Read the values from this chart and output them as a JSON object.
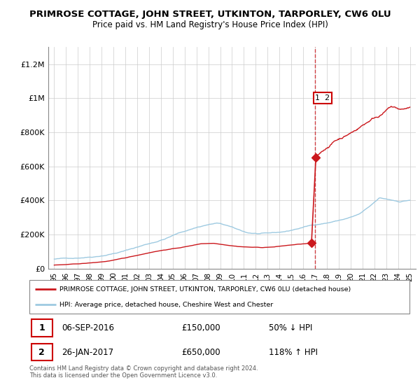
{
  "title": "PRIMROSE COTTAGE, JOHN STREET, UTKINTON, TARPORLEY, CW6 0LU",
  "subtitle": "Price paid vs. HM Land Registry's House Price Index (HPI)",
  "title_fontsize": 9.5,
  "subtitle_fontsize": 8.5,
  "ylim": [
    0,
    1300000
  ],
  "xlim": [
    1994.5,
    2025.5
  ],
  "yticks": [
    0,
    200000,
    400000,
    600000,
    800000,
    1000000,
    1200000
  ],
  "ytick_labels": [
    "£0",
    "£200K",
    "£400K",
    "£600K",
    "£800K",
    "£1M",
    "£1.2M"
  ],
  "xticks": [
    1995,
    1996,
    1997,
    1998,
    1999,
    2000,
    2001,
    2002,
    2003,
    2004,
    2005,
    2006,
    2007,
    2008,
    2009,
    2010,
    2011,
    2012,
    2013,
    2014,
    2015,
    2016,
    2017,
    2018,
    2019,
    2020,
    2021,
    2022,
    2023,
    2024,
    2025
  ],
  "hpi_color": "#9ecae1",
  "price_color": "#cb181d",
  "sale1_x": 2016.7,
  "sale1_y": 150000,
  "sale2_x": 2017.07,
  "sale2_y": 650000,
  "dashed_x": 2016.97,
  "legend_line1": "PRIMROSE COTTAGE, JOHN STREET, UTKINTON, TARPORLEY, CW6 0LU (detached house)",
  "legend_line2": "HPI: Average price, detached house, Cheshire West and Chester",
  "table_row1": [
    "1",
    "06-SEP-2016",
    "£150,000",
    "50% ↓ HPI"
  ],
  "table_row2": [
    "2",
    "26-JAN-2017",
    "£650,000",
    "118% ↑ HPI"
  ],
  "footer": "Contains HM Land Registry data © Crown copyright and database right 2024.\nThis data is licensed under the Open Government Licence v3.0."
}
